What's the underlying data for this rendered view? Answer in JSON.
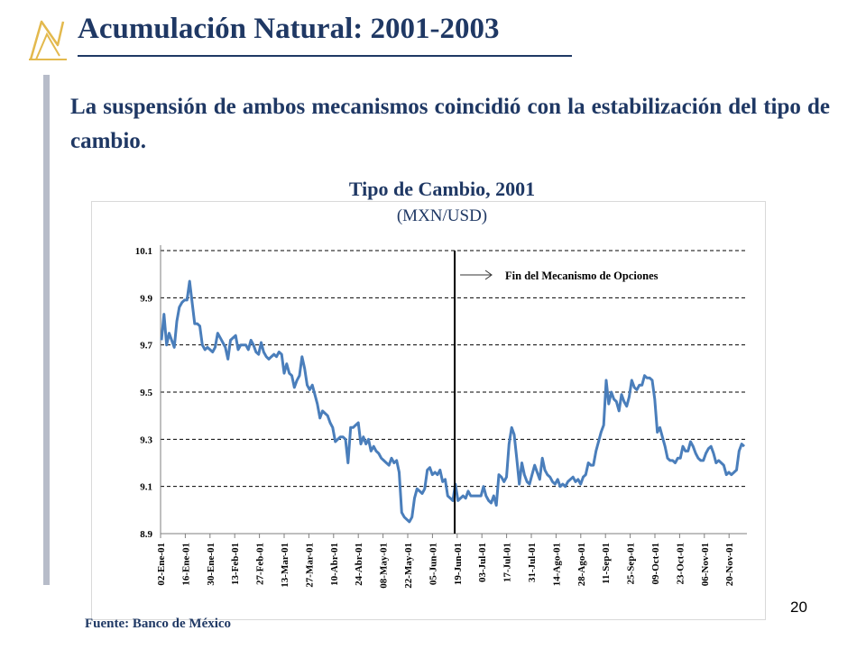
{
  "slide": {
    "title": "Acumulación Natural: 2001-2003",
    "subtitle": "La suspensión de ambos mecanismos coincidió con la estabilización del tipo de cambio.",
    "source": "Fuente: Banco de México",
    "page_number": "20"
  },
  "colors": {
    "title": "#1f3864",
    "line": "#4a7ebb",
    "logo": "#e3b94d",
    "vertical_bar": "#b7bcc9"
  },
  "chart_data": {
    "type": "line",
    "title": "Tipo de Cambio, 2001",
    "subtitle": "(MXN/USD)",
    "xlabel": "",
    "ylabel": "",
    "ylim": [
      8.9,
      10.1
    ],
    "yticks": [
      "10.1",
      "9.9",
      "9.7",
      "9.5",
      "9.3",
      "9.1",
      "8.9"
    ],
    "grid": "horizontal dashed",
    "xtick_labels": [
      "02-Ene-01",
      "16-Ene-01",
      "30-Ene-01",
      "13-Feb-01",
      "27-Feb-01",
      "13-Mar-01",
      "27-Mar-01",
      "10-Abr-01",
      "24-Abr-01",
      "08-May-01",
      "22-May-01",
      "05-Jun-01",
      "19-Jun-01",
      "03-Jul-01",
      "17-Jul-01",
      "31-Jul-01",
      "14-Ago-01",
      "28-Ago-01",
      "11-Sep-01",
      "25-Sep-01",
      "09-Oct-01",
      "23-Oct-01",
      "06-Nov-01",
      "20-Nov-01"
    ],
    "annotation": {
      "text": "Fin del Mecanismo de Opciones",
      "at_tick_index": 11.9
    },
    "series": [
      {
        "values": [
          9.72,
          9.83,
          9.7,
          9.75,
          9.72,
          9.69,
          9.8,
          9.86,
          9.88,
          9.89,
          9.89,
          9.97,
          9.88,
          9.79,
          9.79,
          9.78,
          9.7,
          9.68,
          9.69,
          9.68,
          9.67,
          9.69,
          9.75,
          9.73,
          9.71,
          9.69,
          9.64,
          9.72,
          9.73,
          9.74,
          9.68,
          9.7,
          9.7,
          9.7,
          9.68,
          9.72,
          9.7,
          9.67,
          9.66,
          9.71,
          9.67,
          9.65,
          9.64,
          9.65,
          9.66,
          9.65,
          9.67,
          9.66,
          9.58,
          9.62,
          9.58,
          9.57,
          9.52,
          9.55,
          9.57,
          9.65,
          9.6,
          9.53,
          9.51,
          9.53,
          9.49,
          9.45,
          9.39,
          9.42,
          9.41,
          9.4,
          9.37,
          9.35,
          9.29,
          9.3,
          9.31,
          9.31,
          9.3,
          9.2,
          9.35,
          9.35,
          9.36,
          9.37,
          9.28,
          9.31,
          9.28,
          9.3,
          9.25,
          9.27,
          9.25,
          9.24,
          9.22,
          9.21,
          9.2,
          9.19,
          9.22,
          9.2,
          9.21,
          9.16,
          8.99,
          8.97,
          8.96,
          8.95,
          8.97,
          9.05,
          9.09,
          9.08,
          9.07,
          9.09,
          9.17,
          9.18,
          9.15,
          9.16,
          9.15,
          9.17,
          9.12,
          9.13,
          9.06,
          9.05,
          9.04,
          9.11,
          9.04,
          9.05,
          9.06,
          9.05,
          9.08,
          9.06,
          9.06,
          9.06,
          9.06,
          9.06,
          9.1,
          9.06,
          9.04,
          9.03,
          9.06,
          9.02,
          9.15,
          9.14,
          9.12,
          9.14,
          9.28,
          9.35,
          9.32,
          9.22,
          9.11,
          9.2,
          9.15,
          9.12,
          9.11,
          9.15,
          9.19,
          9.16,
          9.13,
          9.22,
          9.17,
          9.15,
          9.14,
          9.12,
          9.11,
          9.13,
          9.1,
          9.11,
          9.1,
          9.12,
          9.13,
          9.14,
          9.12,
          9.13,
          9.11,
          9.14,
          9.15,
          9.2,
          9.19,
          9.19,
          9.25,
          9.29,
          9.33,
          9.36,
          9.55,
          9.45,
          9.5,
          9.47,
          9.46,
          9.42,
          9.49,
          9.46,
          9.44,
          9.48,
          9.55,
          9.52,
          9.51,
          9.53,
          9.53,
          9.57,
          9.56,
          9.56,
          9.55,
          9.47,
          9.33,
          9.35,
          9.31,
          9.27,
          9.22,
          9.21,
          9.21,
          9.2,
          9.22,
          9.22,
          9.27,
          9.25,
          9.25,
          9.29,
          9.27,
          9.24,
          9.22,
          9.21,
          9.21,
          9.24,
          9.26,
          9.27,
          9.24,
          9.2,
          9.21,
          9.2,
          9.19,
          9.15,
          9.16,
          9.15,
          9.16,
          9.17,
          9.25,
          9.28,
          9.27
        ]
      }
    ]
  }
}
